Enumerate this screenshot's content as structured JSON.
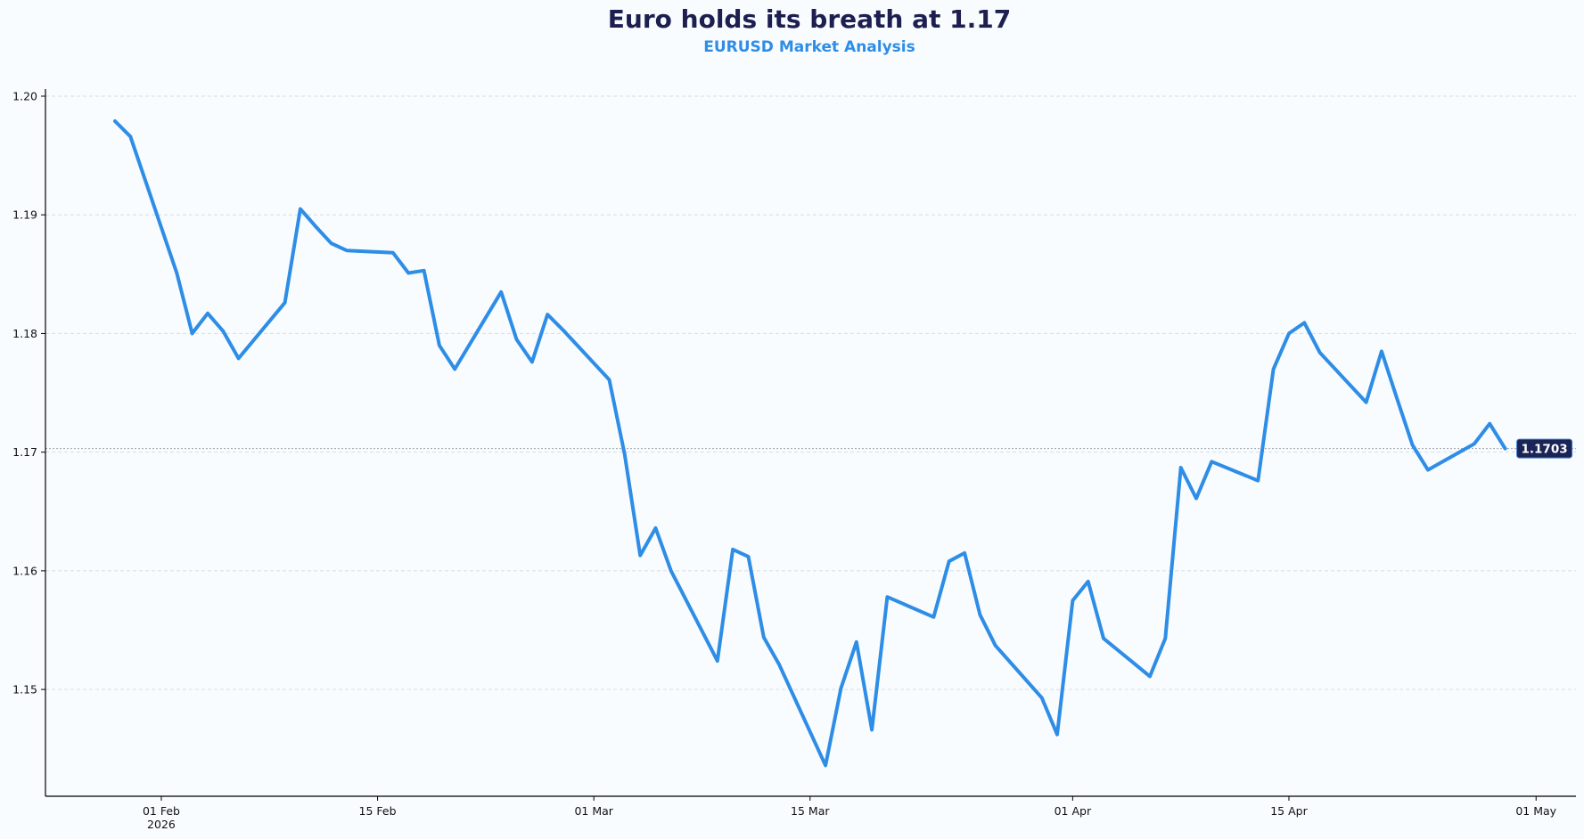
{
  "chart_data": {
    "type": "line",
    "title": "Euro holds its breath at 1.17",
    "subtitle": "EURUSD Market Analysis",
    "xlabel": "",
    "ylabel": "",
    "xlim": [
      "2026-01-24",
      "2026-05-03"
    ],
    "ylim": [
      1.141,
      1.2006
    ],
    "grid": "horizontal dashed",
    "x_ticks": [
      {
        "date": "2026-02-01",
        "label": "01 Feb",
        "sublabel": "2026"
      },
      {
        "date": "2026-02-15",
        "label": "15 Feb"
      },
      {
        "date": "2026-03-01",
        "label": "01 Mar"
      },
      {
        "date": "2026-03-15",
        "label": "15 Mar"
      },
      {
        "date": "2026-04-01",
        "label": "01 Apr"
      },
      {
        "date": "2026-04-15",
        "label": "15 Apr"
      },
      {
        "date": "2026-05-01",
        "label": "01 May"
      }
    ],
    "y_ticks": [
      {
        "value": 1.15,
        "label": "1.15"
      },
      {
        "value": 1.16,
        "label": "1.16"
      },
      {
        "value": 1.17,
        "label": "1.17"
      },
      {
        "value": 1.18,
        "label": "1.18"
      },
      {
        "value": 1.19,
        "label": "1.19"
      },
      {
        "value": 1.2,
        "label": "1.20"
      }
    ],
    "series": [
      {
        "color": "#2e8de6",
        "x": [
          "2026-01-29",
          "2026-01-30",
          "2026-02-02",
          "2026-02-03",
          "2026-02-04",
          "2026-02-05",
          "2026-02-06",
          "2026-02-09",
          "2026-02-10",
          "2026-02-11",
          "2026-02-12",
          "2026-02-13",
          "2026-02-16",
          "2026-02-17",
          "2026-02-18",
          "2026-02-19",
          "2026-02-20",
          "2026-02-23",
          "2026-02-24",
          "2026-02-25",
          "2026-02-26",
          "2026-02-27",
          "2026-03-02",
          "2026-03-03",
          "2026-03-04",
          "2026-03-05",
          "2026-03-06",
          "2026-03-09",
          "2026-03-10",
          "2026-03-11",
          "2026-03-12",
          "2026-03-13",
          "2026-03-16",
          "2026-03-17",
          "2026-03-18",
          "2026-03-19",
          "2026-03-20",
          "2026-03-23",
          "2026-03-24",
          "2026-03-25",
          "2026-03-26",
          "2026-03-27",
          "2026-03-30",
          "2026-03-31",
          "2026-04-01",
          "2026-04-02",
          "2026-04-03",
          "2026-04-06",
          "2026-04-07",
          "2026-04-08",
          "2026-04-09",
          "2026-04-10",
          "2026-04-13",
          "2026-04-14",
          "2026-04-15",
          "2026-04-16",
          "2026-04-17",
          "2026-04-20",
          "2026-04-21",
          "2026-04-22",
          "2026-04-23",
          "2026-04-24",
          "2026-04-27",
          "2026-04-28",
          "2026-04-29"
        ],
        "y": [
          1.1979,
          1.1966,
          1.1851,
          1.18,
          1.1817,
          1.1802,
          1.1779,
          1.1826,
          1.1905,
          1.189,
          1.1876,
          1.187,
          1.1868,
          1.1851,
          1.1853,
          1.179,
          1.177,
          1.1835,
          1.1795,
          1.1776,
          1.1816,
          1.1803,
          1.1761,
          1.1698,
          1.1613,
          1.1636,
          1.16,
          1.1524,
          1.1618,
          1.1612,
          1.1544,
          1.1521,
          1.1436,
          1.1501,
          1.154,
          1.1466,
          1.1578,
          1.1561,
          1.1608,
          1.1615,
          1.1563,
          1.1537,
          1.1493,
          1.1462,
          1.1575,
          1.1591,
          1.1543,
          1.1511,
          1.1543,
          1.1687,
          1.1661,
          1.1692,
          1.1676,
          1.177,
          1.18,
          1.1809,
          1.1784,
          1.1742,
          1.1785,
          1.1745,
          1.1706,
          1.1685,
          1.1707,
          1.1724,
          1.1703
        ]
      }
    ],
    "last_value": {
      "value": 1.1703,
      "label": "1.1703",
      "box_color": "#1a2456",
      "reference_line": "dotted"
    }
  }
}
